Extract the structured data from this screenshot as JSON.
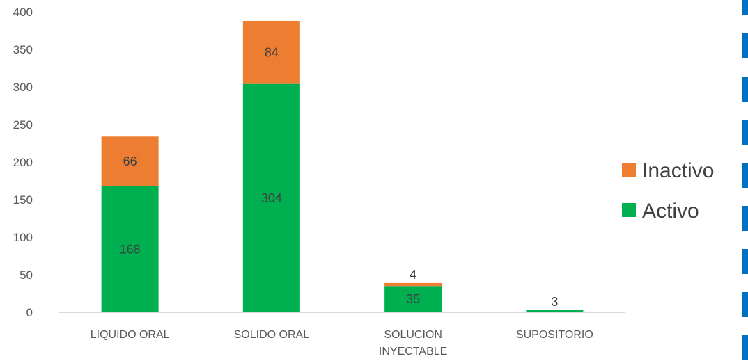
{
  "chart_data": {
    "type": "bar",
    "stacked": true,
    "categories": [
      [
        "LIQUIDO ORAL"
      ],
      [
        "SOLIDO ORAL"
      ],
      [
        "SOLUCION",
        "INYECTABLE"
      ],
      [
        "SUPOSITORIO"
      ]
    ],
    "series": [
      {
        "name": "Activo",
        "color": "#00b050",
        "values": [
          168,
          304,
          35,
          3
        ]
      },
      {
        "name": "Inactivo",
        "color": "#ed7d31",
        "values": [
          66,
          84,
          4,
          0
        ]
      }
    ],
    "ylim": [
      0,
      400
    ],
    "yticks": [
      0,
      50,
      100,
      150,
      200,
      250,
      300,
      350,
      400
    ],
    "grid": false,
    "legend": "right",
    "title": "",
    "xlabel": "",
    "ylabel": ""
  },
  "decor": {
    "dash_color": "#0070c0"
  }
}
